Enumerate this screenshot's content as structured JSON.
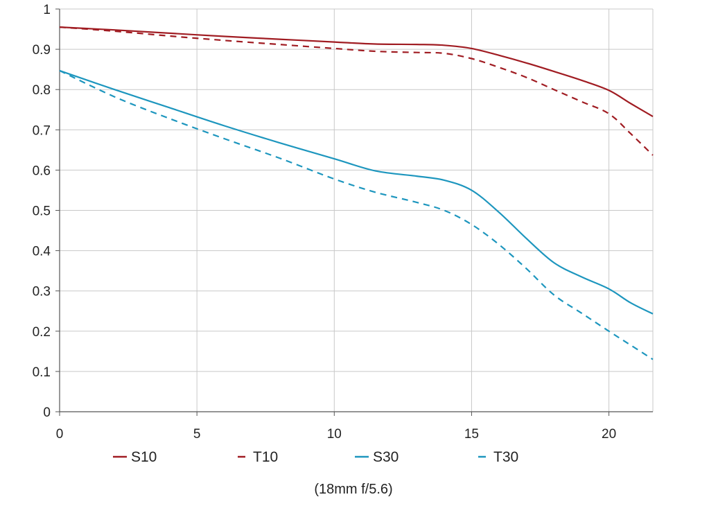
{
  "chart_data": {
    "type": "line",
    "caption": "(18mm f/5.6)",
    "xlim": [
      0,
      21.6
    ],
    "ylim": [
      0,
      1
    ],
    "x_ticks": [
      "0",
      "5",
      "10",
      "15",
      "20"
    ],
    "y_ticks": [
      "0",
      "0.1",
      "0.2",
      "0.3",
      "0.4",
      "0.5",
      "0.6",
      "0.7",
      "0.8",
      "0.9",
      "1"
    ],
    "grid": true,
    "legend_position": "bottom",
    "series": [
      {
        "name": "S10",
        "color": "#a01c22",
        "dash": false,
        "x": [
          0,
          2,
          4,
          6,
          8,
          10,
          11.5,
          13,
          14,
          15,
          16,
          17,
          18,
          19,
          20,
          20.8,
          21.6
        ],
        "y": [
          0.955,
          0.948,
          0.94,
          0.932,
          0.925,
          0.918,
          0.913,
          0.912,
          0.91,
          0.902,
          0.885,
          0.866,
          0.845,
          0.823,
          0.798,
          0.765,
          0.733
        ]
      },
      {
        "name": "T10",
        "color": "#a01c22",
        "dash": true,
        "x": [
          0,
          2,
          4,
          6,
          8,
          10,
          11.5,
          13,
          14,
          15,
          16,
          17,
          18,
          19,
          20,
          20.8,
          21.6
        ],
        "y": [
          0.955,
          0.945,
          0.933,
          0.922,
          0.912,
          0.902,
          0.895,
          0.892,
          0.89,
          0.877,
          0.855,
          0.83,
          0.8,
          0.77,
          0.74,
          0.69,
          0.637
        ]
      },
      {
        "name": "S30",
        "color": "#1d96be",
        "dash": false,
        "x": [
          0,
          2,
          4,
          6,
          8,
          10,
          11.5,
          13,
          14,
          15,
          16,
          17,
          18,
          19,
          20,
          20.8,
          21.6
        ],
        "y": [
          0.847,
          0.8,
          0.755,
          0.71,
          0.668,
          0.628,
          0.598,
          0.585,
          0.575,
          0.55,
          0.495,
          0.43,
          0.37,
          0.335,
          0.305,
          0.27,
          0.243
        ]
      },
      {
        "name": "T30",
        "color": "#1d96be",
        "dash": true,
        "x": [
          0,
          2,
          4,
          6,
          8,
          10,
          11.5,
          13,
          14,
          15,
          16,
          17,
          18,
          19,
          20,
          20.8,
          21.6
        ],
        "y": [
          0.847,
          0.782,
          0.728,
          0.678,
          0.63,
          0.578,
          0.545,
          0.52,
          0.5,
          0.465,
          0.415,
          0.355,
          0.29,
          0.245,
          0.2,
          0.165,
          0.13
        ]
      }
    ]
  }
}
